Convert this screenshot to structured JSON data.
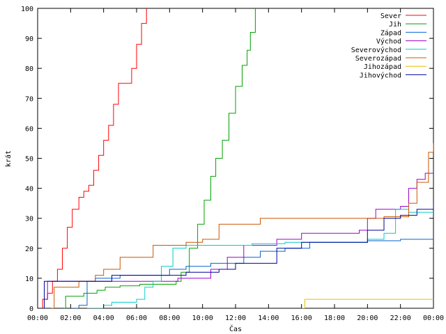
{
  "chart_data": {
    "type": "line",
    "title": "",
    "xlabel": "Čas",
    "ylabel": "krát",
    "xlim": [
      0,
      24
    ],
    "ylim": [
      0,
      100
    ],
    "x_ticks": [
      {
        "value": 0,
        "label": "00:00"
      },
      {
        "value": 2,
        "label": "02:00"
      },
      {
        "value": 4,
        "label": "04:00"
      },
      {
        "value": 6,
        "label": "06:00"
      },
      {
        "value": 8,
        "label": "08:00"
      },
      {
        "value": 10,
        "label": "10:00"
      },
      {
        "value": 12,
        "label": "12:00"
      },
      {
        "value": 14,
        "label": "14:00"
      },
      {
        "value": 16,
        "label": "16:00"
      },
      {
        "value": 18,
        "label": "18:00"
      },
      {
        "value": 20,
        "label": "20:00"
      },
      {
        "value": 22,
        "label": "22:00"
      },
      {
        "value": 24,
        "label": "00:00"
      }
    ],
    "y_ticks": [
      0,
      10,
      20,
      30,
      40,
      50,
      60,
      70,
      80,
      90,
      100
    ],
    "grid": false,
    "legend_position": "top-right",
    "series": [
      {
        "name": "Sever",
        "color": "#ff0000",
        "points": [
          [
            0,
            0
          ],
          [
            0.3,
            3
          ],
          [
            0.6,
            5
          ],
          [
            0.9,
            9
          ],
          [
            1.2,
            13
          ],
          [
            1.5,
            20
          ],
          [
            1.8,
            27
          ],
          [
            2.1,
            33
          ],
          [
            2.5,
            37
          ],
          [
            2.8,
            39
          ],
          [
            3.1,
            41
          ],
          [
            3.4,
            46
          ],
          [
            3.7,
            51
          ],
          [
            4.0,
            56
          ],
          [
            4.3,
            61
          ],
          [
            4.6,
            68
          ],
          [
            4.9,
            75
          ],
          [
            5.4,
            75
          ],
          [
            5.7,
            80
          ],
          [
            6.0,
            88
          ],
          [
            6.3,
            95
          ],
          [
            6.6,
            100
          ]
        ]
      },
      {
        "name": "Jih",
        "color": "#00a000",
        "points": [
          [
            1.6,
            0
          ],
          [
            1.7,
            4
          ],
          [
            2.8,
            5
          ],
          [
            3.6,
            6
          ],
          [
            4.1,
            7
          ],
          [
            5.0,
            7.5
          ],
          [
            6.2,
            8
          ],
          [
            7.2,
            8
          ],
          [
            8.4,
            9
          ],
          [
            8.7,
            12
          ],
          [
            9.2,
            20
          ],
          [
            9.7,
            28
          ],
          [
            10.1,
            36
          ],
          [
            10.5,
            44
          ],
          [
            10.8,
            50
          ],
          [
            11.2,
            56
          ],
          [
            11.6,
            65
          ],
          [
            12.0,
            74
          ],
          [
            12.4,
            81
          ],
          [
            12.7,
            86
          ],
          [
            12.9,
            92
          ],
          [
            13.2,
            100
          ]
        ]
      },
      {
        "name": "Západ",
        "color": "#0066cc",
        "points": [
          [
            2.0,
            0
          ],
          [
            2.5,
            1
          ],
          [
            3.0,
            9
          ],
          [
            3.5,
            10
          ],
          [
            5.0,
            11
          ],
          [
            8.0,
            13
          ],
          [
            9.0,
            14
          ],
          [
            10.5,
            15
          ],
          [
            12.5,
            17
          ],
          [
            13.5,
            19
          ],
          [
            15.0,
            20
          ],
          [
            16.5,
            22
          ],
          [
            20.0,
            22.5
          ],
          [
            22.0,
            23
          ],
          [
            24.0,
            23
          ]
        ]
      },
      {
        "name": "Východ",
        "color": "#9900cc",
        "points": [
          [
            0.2,
            0
          ],
          [
            0.4,
            3
          ],
          [
            0.6,
            9
          ],
          [
            7.0,
            9
          ],
          [
            8.5,
            10
          ],
          [
            10.5,
            13
          ],
          [
            11.5,
            17
          ],
          [
            12.5,
            21
          ],
          [
            14.5,
            23
          ],
          [
            16.0,
            25
          ],
          [
            19.5,
            26
          ],
          [
            20.0,
            30
          ],
          [
            20.5,
            33
          ],
          [
            22.0,
            34
          ],
          [
            22.5,
            40
          ],
          [
            23.0,
            43
          ],
          [
            23.5,
            45
          ],
          [
            24.0,
            45
          ]
        ]
      },
      {
        "name": "Severovýchod",
        "color": "#00cccc",
        "points": [
          [
            3.0,
            0
          ],
          [
            4.0,
            1
          ],
          [
            4.5,
            2
          ],
          [
            6.0,
            3
          ],
          [
            6.5,
            7
          ],
          [
            7.0,
            9
          ],
          [
            7.5,
            14
          ],
          [
            8.2,
            20
          ],
          [
            9.0,
            21
          ],
          [
            13.0,
            21.5
          ],
          [
            15.0,
            22
          ],
          [
            20.0,
            23
          ],
          [
            21.0,
            25
          ],
          [
            21.7,
            33
          ],
          [
            22.5,
            32
          ],
          [
            24.0,
            32
          ]
        ]
      },
      {
        "name": "Severozápad",
        "color": "#cc5500",
        "points": [
          [
            0.8,
            0
          ],
          [
            1.0,
            7
          ],
          [
            2.5,
            9
          ],
          [
            3.5,
            11
          ],
          [
            4.0,
            13
          ],
          [
            5.0,
            17
          ],
          [
            7.0,
            21
          ],
          [
            9.0,
            22
          ],
          [
            10.0,
            23
          ],
          [
            11.0,
            28
          ],
          [
            13.5,
            30
          ],
          [
            21.0,
            30.5
          ],
          [
            22.5,
            35
          ],
          [
            23.0,
            42
          ],
          [
            23.7,
            52
          ],
          [
            24.0,
            55
          ]
        ]
      },
      {
        "name": "Jihozápad",
        "color": "#e6c000",
        "points": [
          [
            16.0,
            0
          ],
          [
            16.2,
            3
          ],
          [
            24.0,
            3
          ]
        ]
      },
      {
        "name": "Jihovýchod",
        "color": "#000099",
        "points": [
          [
            0.1,
            0
          ],
          [
            0.4,
            9
          ],
          [
            4.5,
            11
          ],
          [
            9.0,
            12
          ],
          [
            11.0,
            13
          ],
          [
            12.0,
            15
          ],
          [
            14.5,
            20
          ],
          [
            16.0,
            22
          ],
          [
            20.0,
            26
          ],
          [
            21.0,
            30
          ],
          [
            22.0,
            31
          ],
          [
            23.0,
            33
          ],
          [
            24.0,
            35
          ]
        ]
      }
    ]
  }
}
